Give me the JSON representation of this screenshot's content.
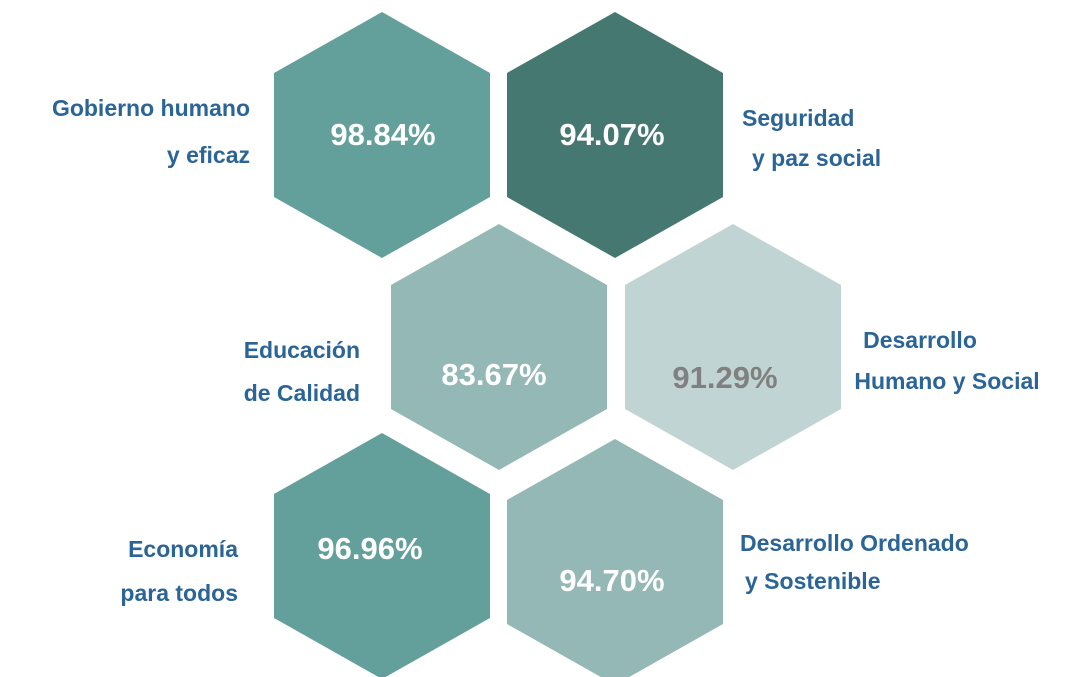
{
  "nodes": [
    {
      "label": [
        "Gobierno humano",
        "y eficaz"
      ],
      "value": "98.84%",
      "color": "#64a09b",
      "value_color": "#ffffff"
    },
    {
      "label": [
        "Seguridad",
        "y paz social"
      ],
      "value": "94.07%",
      "color": "#467872",
      "value_color": "#ffffff"
    },
    {
      "label": [
        "Educación",
        "de Calidad"
      ],
      "value": "83.67%",
      "color": "#94b8b5",
      "value_color": "#ffffff"
    },
    {
      "label": [
        "Desarrollo",
        "Humano y Social"
      ],
      "value": "91.29%",
      "color": "#c0d5d3",
      "value_color": "#808080"
    },
    {
      "label": [
        "Economía",
        "para todos"
      ],
      "value": "96.96%",
      "color": "#64a09b",
      "value_color": "#ffffff"
    },
    {
      "label": [
        "Desarrollo Ordenado",
        "y Sostenible"
      ],
      "value": "94.70%",
      "color": "#94b8b5",
      "value_color": "#ffffff"
    }
  ]
}
